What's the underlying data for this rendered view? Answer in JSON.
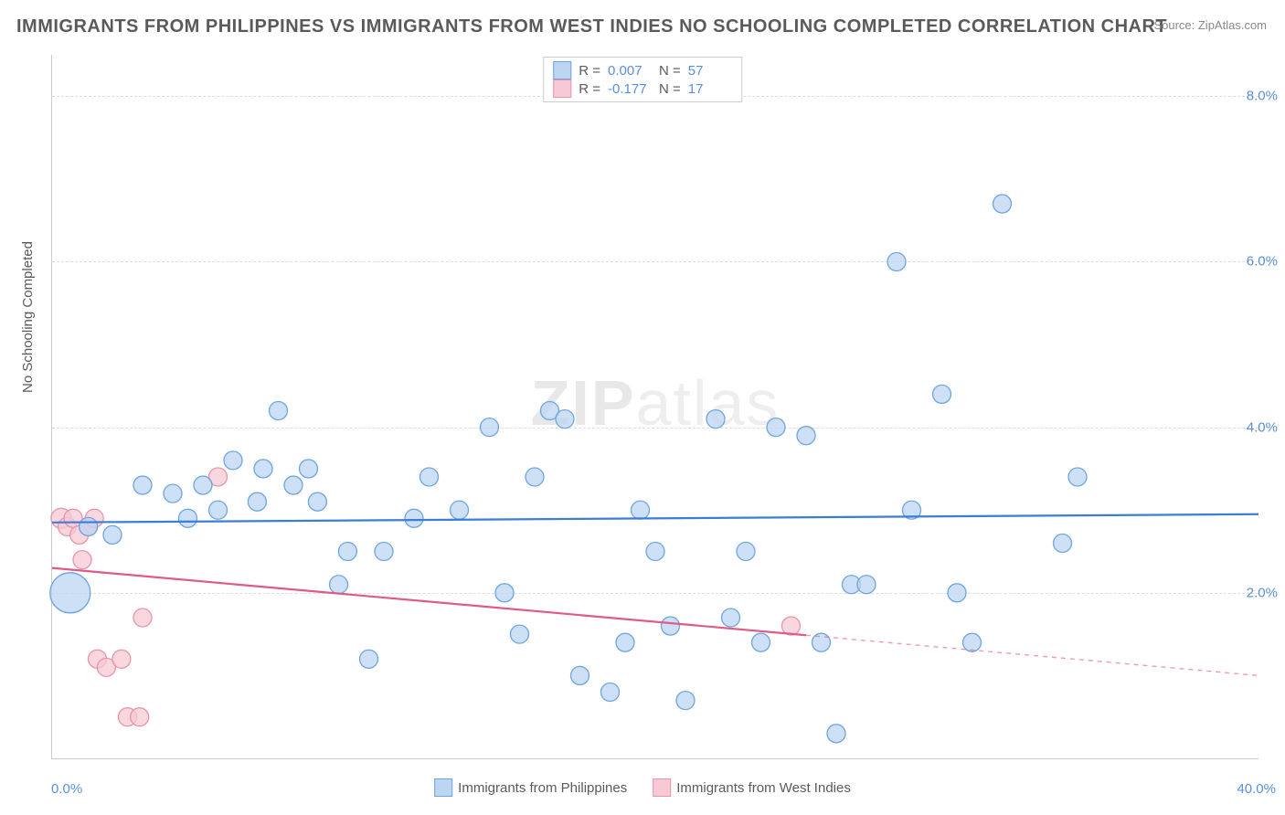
{
  "title": "IMMIGRANTS FROM PHILIPPINES VS IMMIGRANTS FROM WEST INDIES NO SCHOOLING COMPLETED CORRELATION CHART",
  "source": "Source: ZipAtlas.com",
  "watermark": "ZIPatlas",
  "ylabel": "No Schooling Completed",
  "chart": {
    "type": "scatter-with-regression",
    "xlim": [
      0,
      40
    ],
    "ylim": [
      0,
      8.5
    ],
    "xticks": [
      {
        "pos": 0,
        "label": "0.0%"
      },
      {
        "pos": 40,
        "label": "40.0%"
      }
    ],
    "yticks": [
      {
        "pos": 2.0,
        "label": "2.0%"
      },
      {
        "pos": 4.0,
        "label": "4.0%"
      },
      {
        "pos": 6.0,
        "label": "6.0%"
      },
      {
        "pos": 8.0,
        "label": "8.0%"
      }
    ],
    "grid_color": "#dddddd",
    "background_color": "#ffffff",
    "series": [
      {
        "name": "Immigrants from Philippines",
        "color_fill": "#bcd6f2",
        "color_stroke": "#6ea5e0",
        "line_color": "#3b7dd8",
        "r_label": "R =",
        "r_value": "0.007",
        "n_label": "N =",
        "n_value": "57",
        "regression": {
          "y_start": 2.85,
          "y_end": 2.95,
          "x_solid_end": 40
        },
        "points": [
          {
            "x": 0.6,
            "y": 2.0,
            "r": 22
          },
          {
            "x": 1.2,
            "y": 2.8,
            "r": 10
          },
          {
            "x": 2.0,
            "y": 2.7,
            "r": 10
          },
          {
            "x": 3.0,
            "y": 3.3,
            "r": 10
          },
          {
            "x": 4.0,
            "y": 3.2,
            "r": 10
          },
          {
            "x": 4.5,
            "y": 2.9,
            "r": 10
          },
          {
            "x": 5.0,
            "y": 3.3,
            "r": 10
          },
          {
            "x": 5.5,
            "y": 3.0,
            "r": 10
          },
          {
            "x": 6.0,
            "y": 3.6,
            "r": 10
          },
          {
            "x": 6.8,
            "y": 3.1,
            "r": 10
          },
          {
            "x": 7.0,
            "y": 3.5,
            "r": 10
          },
          {
            "x": 7.5,
            "y": 4.2,
            "r": 10
          },
          {
            "x": 8.0,
            "y": 3.3,
            "r": 10
          },
          {
            "x": 8.5,
            "y": 3.5,
            "r": 10
          },
          {
            "x": 8.8,
            "y": 3.1,
            "r": 10
          },
          {
            "x": 9.5,
            "y": 2.1,
            "r": 10
          },
          {
            "x": 9.8,
            "y": 2.5,
            "r": 10
          },
          {
            "x": 10.5,
            "y": 1.2,
            "r": 10
          },
          {
            "x": 11.0,
            "y": 2.5,
            "r": 10
          },
          {
            "x": 12.0,
            "y": 2.9,
            "r": 10
          },
          {
            "x": 12.5,
            "y": 3.4,
            "r": 10
          },
          {
            "x": 13.5,
            "y": 3.0,
            "r": 10
          },
          {
            "x": 14.5,
            "y": 4.0,
            "r": 10
          },
          {
            "x": 15.0,
            "y": 2.0,
            "r": 10
          },
          {
            "x": 15.5,
            "y": 1.5,
            "r": 10
          },
          {
            "x": 16.0,
            "y": 3.4,
            "r": 10
          },
          {
            "x": 16.5,
            "y": 4.2,
            "r": 10
          },
          {
            "x": 17.0,
            "y": 4.1,
            "r": 10
          },
          {
            "x": 17.5,
            "y": 1.0,
            "r": 10
          },
          {
            "x": 18.5,
            "y": 0.8,
            "r": 10
          },
          {
            "x": 19.0,
            "y": 1.4,
            "r": 10
          },
          {
            "x": 19.5,
            "y": 3.0,
            "r": 10
          },
          {
            "x": 20.0,
            "y": 2.5,
            "r": 10
          },
          {
            "x": 20.5,
            "y": 1.6,
            "r": 10
          },
          {
            "x": 21.0,
            "y": 0.7,
            "r": 10
          },
          {
            "x": 22.0,
            "y": 4.1,
            "r": 10
          },
          {
            "x": 22.5,
            "y": 1.7,
            "r": 10
          },
          {
            "x": 23.0,
            "y": 2.5,
            "r": 10
          },
          {
            "x": 23.5,
            "y": 1.4,
            "r": 10
          },
          {
            "x": 24.0,
            "y": 4.0,
            "r": 10
          },
          {
            "x": 25.0,
            "y": 3.9,
            "r": 10
          },
          {
            "x": 25.5,
            "y": 1.4,
            "r": 10
          },
          {
            "x": 26.0,
            "y": 0.3,
            "r": 10
          },
          {
            "x": 26.5,
            "y": 2.1,
            "r": 10
          },
          {
            "x": 27.0,
            "y": 2.1,
            "r": 10
          },
          {
            "x": 28.0,
            "y": 6.0,
            "r": 10
          },
          {
            "x": 28.5,
            "y": 3.0,
            "r": 10
          },
          {
            "x": 29.5,
            "y": 4.4,
            "r": 10
          },
          {
            "x": 30.0,
            "y": 2.0,
            "r": 10
          },
          {
            "x": 30.5,
            "y": 1.4,
            "r": 10
          },
          {
            "x": 31.5,
            "y": 6.7,
            "r": 10
          },
          {
            "x": 33.5,
            "y": 2.6,
            "r": 10
          },
          {
            "x": 34.0,
            "y": 3.4,
            "r": 10
          }
        ]
      },
      {
        "name": "Immigrants from West Indies",
        "color_fill": "#f6c9d4",
        "color_stroke": "#e994ab",
        "line_color": "#e05a88",
        "r_label": "R =",
        "r_value": "-0.177",
        "n_label": "N =",
        "n_value": "17",
        "regression": {
          "y_start": 2.3,
          "y_end": 1.0,
          "x_solid_end": 25
        },
        "points": [
          {
            "x": 0.3,
            "y": 2.9,
            "r": 11
          },
          {
            "x": 0.5,
            "y": 2.8,
            "r": 10
          },
          {
            "x": 0.7,
            "y": 2.9,
            "r": 10
          },
          {
            "x": 0.9,
            "y": 2.7,
            "r": 10
          },
          {
            "x": 1.2,
            "y": 2.8,
            "r": 10
          },
          {
            "x": 1.4,
            "y": 2.9,
            "r": 10
          },
          {
            "x": 1.0,
            "y": 2.4,
            "r": 10
          },
          {
            "x": 1.5,
            "y": 1.2,
            "r": 10
          },
          {
            "x": 1.8,
            "y": 1.1,
            "r": 10
          },
          {
            "x": 2.3,
            "y": 1.2,
            "r": 10
          },
          {
            "x": 2.5,
            "y": 0.5,
            "r": 10
          },
          {
            "x": 2.9,
            "y": 0.5,
            "r": 10
          },
          {
            "x": 3.0,
            "y": 1.7,
            "r": 10
          },
          {
            "x": 5.5,
            "y": 3.4,
            "r": 10
          },
          {
            "x": 24.5,
            "y": 1.6,
            "r": 10
          }
        ]
      }
    ]
  },
  "legend_bottom": [
    {
      "label": "Immigrants from Philippines",
      "fill": "#bcd6f2",
      "stroke": "#6ea5e0"
    },
    {
      "label": "Immigrants from West Indies",
      "fill": "#f6c9d4",
      "stroke": "#e994ab"
    }
  ]
}
